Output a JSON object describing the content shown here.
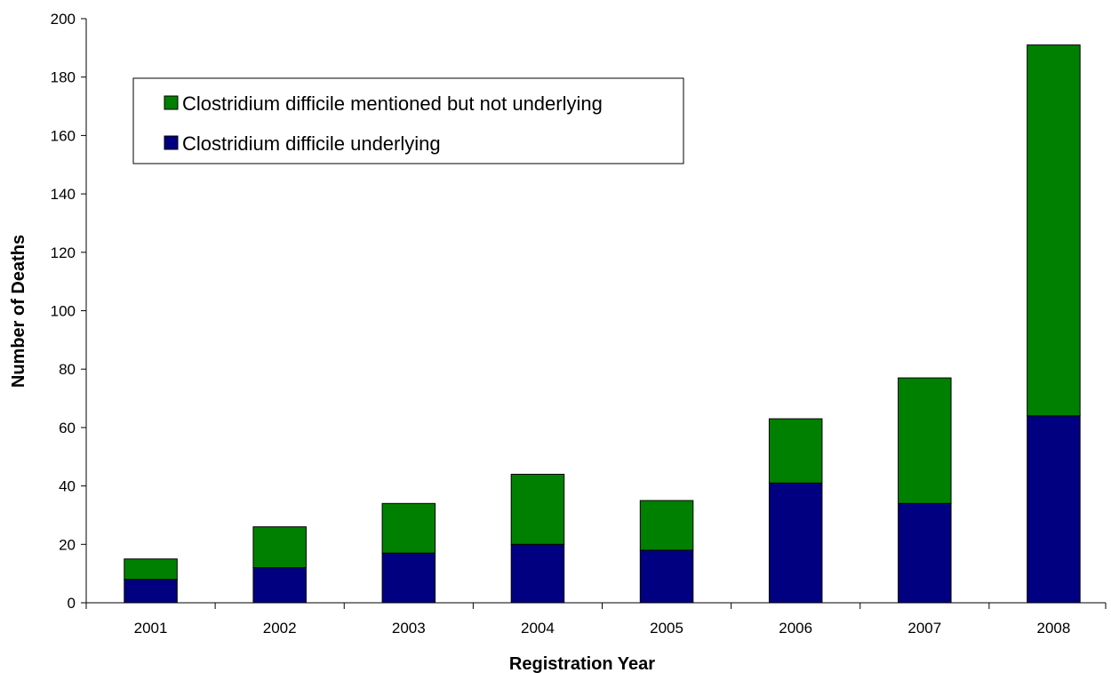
{
  "chart_data": {
    "type": "bar",
    "stacked": true,
    "title": "",
    "xlabel": "Registration Year",
    "ylabel": "Number of Deaths",
    "ylim": [
      0,
      200
    ],
    "yticks": [
      "0",
      "20",
      "40",
      "60",
      "80",
      "100",
      "120",
      "140",
      "160",
      "180",
      "200"
    ],
    "categories": [
      "2001",
      "2002",
      "2003",
      "2004",
      "2005",
      "2006",
      "2007",
      "2008"
    ],
    "series": [
      {
        "name": "Clostridium difficile underlying",
        "color": "#000080",
        "values": [
          8,
          12,
          17,
          20,
          18,
          41,
          34,
          64
        ]
      },
      {
        "name": "Clostridium difficile mentioned but not underlying",
        "color": "#008000",
        "values": [
          7,
          14,
          17,
          24,
          17,
          22,
          43,
          127
        ]
      }
    ],
    "legend": {
      "placement": "top-left",
      "order": [
        "Clostridium difficile mentioned but not underlying",
        "Clostridium difficile underlying"
      ]
    },
    "grid": false
  }
}
